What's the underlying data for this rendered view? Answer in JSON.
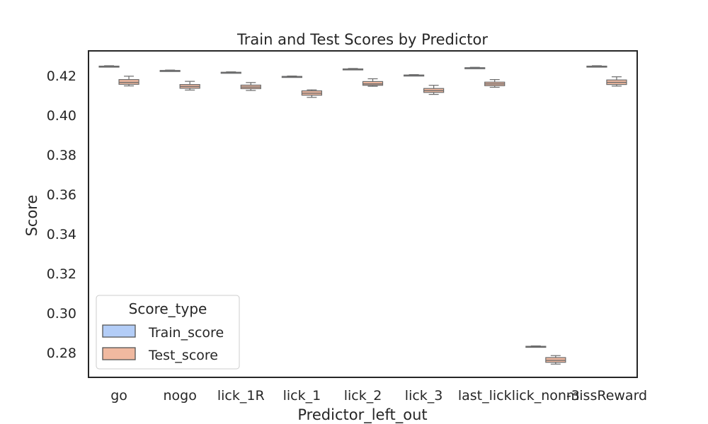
{
  "chart_data": {
    "type": "box",
    "title": "Train and Test Scores by Predictor",
    "xlabel": "Predictor_left_out",
    "ylabel": "Score",
    "ylim": [
      0.2675,
      0.4325
    ],
    "yticks": [
      "0.28",
      "0.30",
      "0.32",
      "0.34",
      "0.36",
      "0.38",
      "0.40",
      "0.42"
    ],
    "categories": [
      "go",
      "nogo",
      "lick_1R",
      "lick_1",
      "lick_2",
      "lick_3",
      "last_lick",
      "lick_non-3",
      "missReward"
    ],
    "legend": {
      "title": "Score_type",
      "position": "lower-left"
    },
    "grid": false,
    "series": [
      {
        "name": "Train_score",
        "color": "#b3cdf7",
        "boxes": [
          {
            "whislo": 0.4244,
            "q1": 0.4246,
            "med": 0.4247,
            "q3": 0.4248,
            "whishi": 0.425
          },
          {
            "whislo": 0.4222,
            "q1": 0.4224,
            "med": 0.4225,
            "q3": 0.4226,
            "whishi": 0.4228
          },
          {
            "whislo": 0.4213,
            "q1": 0.4215,
            "med": 0.4216,
            "q3": 0.4217,
            "whishi": 0.4219
          },
          {
            "whislo": 0.4192,
            "q1": 0.4194,
            "med": 0.4195,
            "q3": 0.4196,
            "whishi": 0.4198
          },
          {
            "whislo": 0.423,
            "q1": 0.4232,
            "med": 0.4233,
            "q3": 0.4234,
            "whishi": 0.4236
          },
          {
            "whislo": 0.4199,
            "q1": 0.4201,
            "med": 0.4202,
            "q3": 0.4203,
            "whishi": 0.4205
          },
          {
            "whislo": 0.4236,
            "q1": 0.4238,
            "med": 0.4239,
            "q3": 0.424,
            "whishi": 0.4242
          },
          {
            "whislo": 0.2828,
            "q1": 0.283,
            "med": 0.2831,
            "q3": 0.2832,
            "whishi": 0.2834
          },
          {
            "whislo": 0.4244,
            "q1": 0.4246,
            "med": 0.4247,
            "q3": 0.4248,
            "whishi": 0.425
          }
        ]
      },
      {
        "name": "Test_score",
        "color": "#f0b9a0",
        "boxes": [
          {
            "whislo": 0.4148,
            "q1": 0.4156,
            "med": 0.4166,
            "q3": 0.418,
            "whishi": 0.4197
          },
          {
            "whislo": 0.4127,
            "q1": 0.4136,
            "med": 0.4145,
            "q3": 0.4155,
            "whishi": 0.4171
          },
          {
            "whislo": 0.4125,
            "q1": 0.4134,
            "med": 0.4142,
            "q3": 0.4152,
            "whishi": 0.4165
          },
          {
            "whislo": 0.409,
            "q1": 0.4101,
            "med": 0.4111,
            "q3": 0.4123,
            "whishi": 0.4128
          },
          {
            "whislo": 0.4146,
            "q1": 0.4151,
            "med": 0.4158,
            "q3": 0.417,
            "whishi": 0.4184
          },
          {
            "whislo": 0.4105,
            "q1": 0.4115,
            "med": 0.4124,
            "q3": 0.4135,
            "whishi": 0.4151
          },
          {
            "whislo": 0.4141,
            "q1": 0.4149,
            "med": 0.4158,
            "q3": 0.4167,
            "whishi": 0.418
          },
          {
            "whislo": 0.2742,
            "q1": 0.2751,
            "med": 0.2761,
            "q3": 0.2775,
            "whishi": 0.2785
          },
          {
            "whislo": 0.4147,
            "q1": 0.4155,
            "med": 0.4166,
            "q3": 0.4178,
            "whishi": 0.4194
          }
        ]
      }
    ]
  }
}
